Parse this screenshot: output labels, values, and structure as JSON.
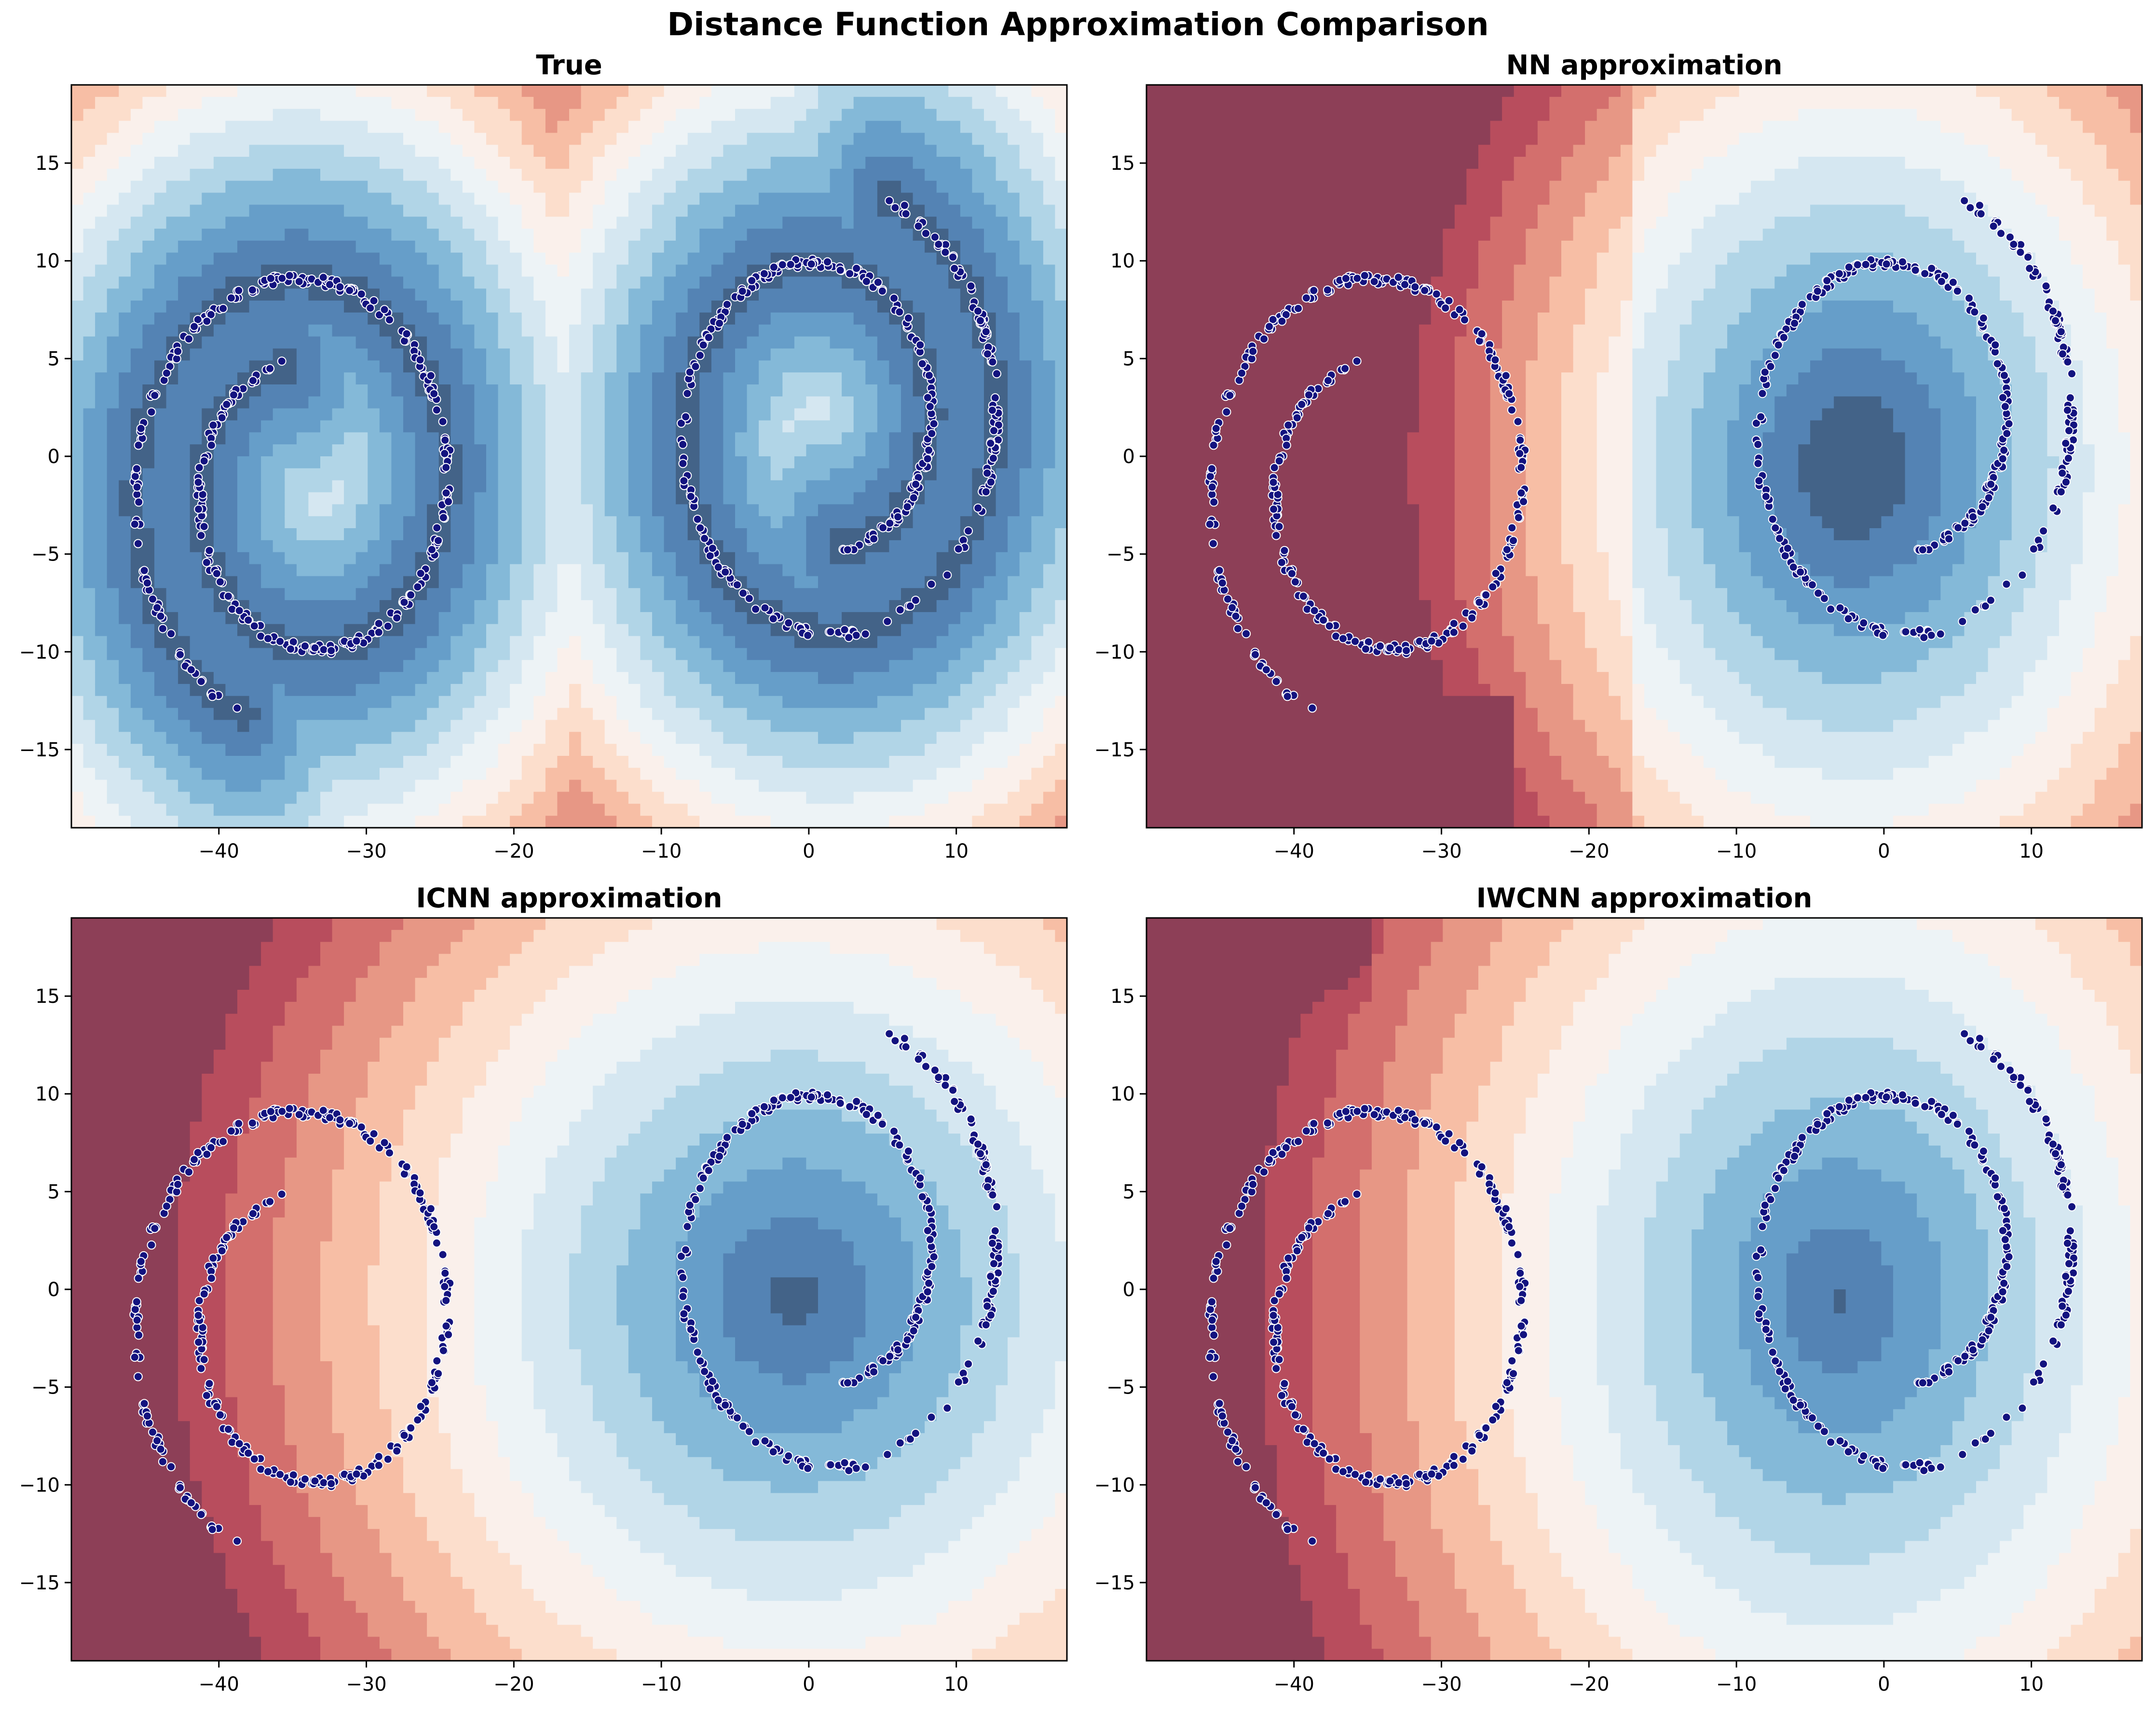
{
  "figure": {
    "title": "Distance Function Approximation Comparison"
  },
  "colors": {
    "dot_fill": "#13137f",
    "dot_edge": "#ffffff",
    "diverging_palette": [
      "#67001f",
      "#b2182b",
      "#d6604d",
      "#f4a582",
      "#fddbc7",
      "#f7f7f7",
      "#d1e5f0",
      "#92c5de",
      "#4393c3",
      "#2166ac",
      "#053061"
    ],
    "contour_opacity": 0.75
  },
  "chart_data": [
    {
      "type": "contour",
      "title": "True",
      "field": "true_distance",
      "xlim": [
        -50,
        17.5
      ],
      "ylim": [
        -19,
        19
      ],
      "xticks": [
        -40,
        -30,
        -20,
        -10,
        0,
        10
      ],
      "yticks": [
        -15,
        -10,
        -5,
        0,
        5,
        10,
        15
      ],
      "xtick_labels": [
        "−40",
        "−30",
        "−20",
        "−10",
        "0",
        "10"
      ],
      "ytick_labels": [
        "−15",
        "−10",
        "−5",
        "0",
        "5",
        "10",
        "15"
      ],
      "series": [
        {
          "role": "spiral-left",
          "center": [
            -34,
            -1.5
          ],
          "r_start": 6.3,
          "r_end": 12.5,
          "rotation": 0
        },
        {
          "role": "spiral-right",
          "center": [
            1,
            1.5
          ],
          "r_start": 6.3,
          "r_end": 12.5,
          "rotation": 180
        }
      ]
    },
    {
      "type": "contour",
      "title": "NN approximation",
      "field": "nn",
      "xlim": [
        -50,
        17.5
      ],
      "ylim": [
        -19,
        19
      ],
      "xticks": [
        -40,
        -30,
        -20,
        -10,
        0,
        10
      ],
      "yticks": [
        -15,
        -10,
        -5,
        0,
        5,
        10,
        15
      ],
      "xtick_labels": [
        "−40",
        "−30",
        "−20",
        "−10",
        "0",
        "10"
      ],
      "ytick_labels": [
        "−15",
        "−10",
        "−5",
        "0",
        "5",
        "10",
        "15"
      ],
      "series": [
        {
          "role": "spiral-left",
          "center": [
            -34,
            -1.5
          ],
          "r_start": 6.3,
          "r_end": 12.5,
          "rotation": 0
        },
        {
          "role": "spiral-right",
          "center": [
            1,
            1.5
          ],
          "r_start": 6.3,
          "r_end": 12.5,
          "rotation": 180
        }
      ]
    },
    {
      "type": "contour",
      "title": "ICNN approximation",
      "field": "icnn",
      "xlim": [
        -50,
        17.5
      ],
      "ylim": [
        -19,
        19
      ],
      "xticks": [
        -40,
        -30,
        -20,
        -10,
        0,
        10
      ],
      "yticks": [
        -15,
        -10,
        -5,
        0,
        5,
        10,
        15
      ],
      "xtick_labels": [
        "−40",
        "−30",
        "−20",
        "−10",
        "0",
        "10"
      ],
      "ytick_labels": [
        "−15",
        "−10",
        "−5",
        "0",
        "5",
        "10",
        "15"
      ],
      "series": [
        {
          "role": "spiral-left",
          "center": [
            -34,
            -1.5
          ],
          "r_start": 6.3,
          "r_end": 12.5,
          "rotation": 0
        },
        {
          "role": "spiral-right",
          "center": [
            1,
            1.5
          ],
          "r_start": 6.3,
          "r_end": 12.5,
          "rotation": 180
        }
      ]
    },
    {
      "type": "contour",
      "title": "IWCNN approximation",
      "field": "iwcnn",
      "xlim": [
        -50,
        17.5
      ],
      "ylim": [
        -19,
        19
      ],
      "xticks": [
        -40,
        -30,
        -20,
        -10,
        0,
        10
      ],
      "yticks": [
        -15,
        -10,
        -5,
        0,
        5,
        10,
        15
      ],
      "xtick_labels": [
        "−40",
        "−30",
        "−20",
        "−10",
        "0",
        "10"
      ],
      "ytick_labels": [
        "−15",
        "−10",
        "−5",
        "0",
        "5",
        "10",
        "15"
      ],
      "series": [
        {
          "role": "spiral-left",
          "center": [
            -34,
            -1.5
          ],
          "r_start": 6.3,
          "r_end": 12.5,
          "rotation": 0
        },
        {
          "role": "spiral-right",
          "center": [
            1,
            1.5
          ],
          "r_start": 6.3,
          "r_end": 12.5,
          "rotation": 180
        }
      ]
    }
  ]
}
